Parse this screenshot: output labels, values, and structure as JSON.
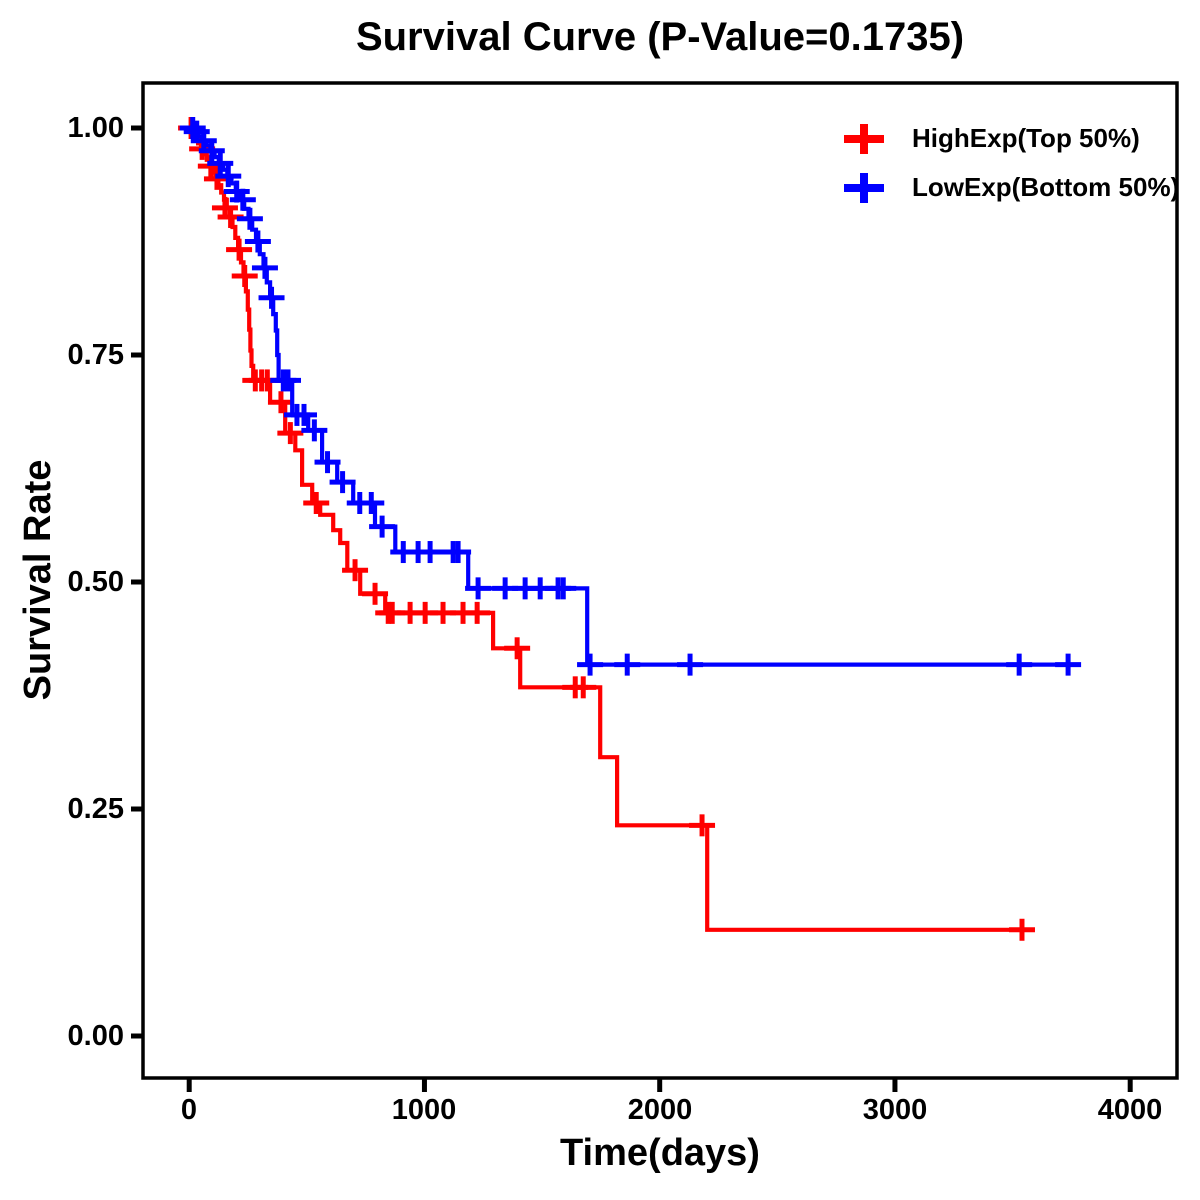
{
  "chart_data": {
    "type": "line",
    "subtype": "kaplan-meier-step-survival",
    "title": "Survival Curve (P-Value=0.1735)",
    "p_value": "0.1735",
    "xlabel": "Time(days)",
    "ylabel": "Survival Rate",
    "xlim": [
      0,
      4000
    ],
    "ylim": [
      0.0,
      1.0
    ],
    "grid": "off",
    "legend_position": "top-right-inside",
    "xticks": [
      0,
      1000,
      2000,
      3000,
      4000
    ],
    "yticks": [
      1.0,
      0.75,
      0.5,
      0.25,
      0.0
    ],
    "xtick_labels": [
      "0",
      "1000",
      "2000",
      "3000",
      "4000"
    ],
    "ytick_labels": [
      "1.00",
      "0.75",
      "0.50",
      "0.25",
      "0.00"
    ],
    "series": [
      {
        "name": "HighExp(Top 50%)",
        "color": "#FF0000",
        "end": 3557,
        "steps": [
          [
            0,
            1.0
          ],
          [
            12,
            0.995
          ],
          [
            25,
            0.989
          ],
          [
            38,
            0.983
          ],
          [
            50,
            0.977
          ],
          [
            62,
            0.971
          ],
          [
            75,
            0.965
          ],
          [
            88,
            0.958
          ],
          [
            100,
            0.951
          ],
          [
            112,
            0.944
          ],
          [
            124,
            0.937
          ],
          [
            136,
            0.929
          ],
          [
            148,
            0.921
          ],
          [
            160,
            0.912
          ],
          [
            172,
            0.902
          ],
          [
            184,
            0.891
          ],
          [
            196,
            0.879
          ],
          [
            208,
            0.866
          ],
          [
            220,
            0.852
          ],
          [
            231,
            0.837
          ],
          [
            241,
            0.82
          ],
          [
            249,
            0.8
          ],
          [
            255,
            0.778
          ],
          [
            260,
            0.755
          ],
          [
            265,
            0.738
          ],
          [
            272,
            0.722
          ],
          [
            344,
            0.698
          ],
          [
            408,
            0.664
          ],
          [
            451,
            0.645
          ],
          [
            480,
            0.607
          ],
          [
            523,
            0.587
          ],
          [
            557,
            0.574
          ],
          [
            612,
            0.557
          ],
          [
            642,
            0.543
          ],
          [
            672,
            0.513
          ],
          [
            727,
            0.487
          ],
          [
            833,
            0.466
          ],
          [
            1292,
            0.427
          ],
          [
            1407,
            0.384
          ],
          [
            1747,
            0.307
          ],
          [
            1819,
            0.232
          ],
          [
            2202,
            0.117
          ]
        ],
        "censors": [
          [
            8,
            1.0
          ],
          [
            55,
            0.977
          ],
          [
            92,
            0.958
          ],
          [
            118,
            0.944
          ],
          [
            152,
            0.912
          ],
          [
            176,
            0.902
          ],
          [
            212,
            0.866
          ],
          [
            236,
            0.837
          ],
          [
            281,
            0.722
          ],
          [
            308,
            0.722
          ],
          [
            332,
            0.722
          ],
          [
            390,
            0.698
          ],
          [
            430,
            0.664
          ],
          [
            540,
            0.587
          ],
          [
            705,
            0.513
          ],
          [
            790,
            0.487
          ],
          [
            846,
            0.466
          ],
          [
            863,
            0.466
          ],
          [
            939,
            0.466
          ],
          [
            1003,
            0.466
          ],
          [
            1079,
            0.466
          ],
          [
            1164,
            0.466
          ],
          [
            1224,
            0.466
          ],
          [
            1394,
            0.427
          ],
          [
            1641,
            0.384
          ],
          [
            1675,
            0.384
          ],
          [
            2180,
            0.232
          ],
          [
            3540,
            0.117
          ]
        ]
      },
      {
        "name": "LowExp(Bottom 50%)",
        "color": "#0000FF",
        "end": 3791,
        "steps": [
          [
            0,
            1.0
          ],
          [
            20,
            0.996
          ],
          [
            38,
            0.991
          ],
          [
            55,
            0.986
          ],
          [
            72,
            0.981
          ],
          [
            90,
            0.975
          ],
          [
            108,
            0.968
          ],
          [
            126,
            0.961
          ],
          [
            144,
            0.954
          ],
          [
            162,
            0.947
          ],
          [
            180,
            0.939
          ],
          [
            198,
            0.93
          ],
          [
            216,
            0.921
          ],
          [
            234,
            0.911
          ],
          [
            252,
            0.9
          ],
          [
            268,
            0.888
          ],
          [
            284,
            0.875
          ],
          [
            300,
            0.861
          ],
          [
            316,
            0.846
          ],
          [
            330,
            0.83
          ],
          [
            344,
            0.813
          ],
          [
            357,
            0.795
          ],
          [
            368,
            0.777
          ],
          [
            374,
            0.75
          ],
          [
            380,
            0.722
          ],
          [
            438,
            0.684
          ],
          [
            506,
            0.667
          ],
          [
            565,
            0.632
          ],
          [
            629,
            0.61
          ],
          [
            697,
            0.587
          ],
          [
            790,
            0.561
          ],
          [
            876,
            0.533
          ],
          [
            1186,
            0.493
          ],
          [
            1692,
            0.409
          ]
        ],
        "censors": [
          [
            15,
            1.0
          ],
          [
            32,
            0.996
          ],
          [
            62,
            0.986
          ],
          [
            96,
            0.975
          ],
          [
            132,
            0.961
          ],
          [
            166,
            0.947
          ],
          [
            202,
            0.93
          ],
          [
            228,
            0.921
          ],
          [
            258,
            0.9
          ],
          [
            292,
            0.875
          ],
          [
            322,
            0.846
          ],
          [
            350,
            0.813
          ],
          [
            400,
            0.722
          ],
          [
            420,
            0.722
          ],
          [
            458,
            0.684
          ],
          [
            488,
            0.684
          ],
          [
            532,
            0.667
          ],
          [
            588,
            0.632
          ],
          [
            652,
            0.61
          ],
          [
            725,
            0.587
          ],
          [
            774,
            0.587
          ],
          [
            820,
            0.561
          ],
          [
            910,
            0.533
          ],
          [
            973,
            0.533
          ],
          [
            1024,
            0.533
          ],
          [
            1122,
            0.533
          ],
          [
            1143,
            0.533
          ],
          [
            1228,
            0.493
          ],
          [
            1343,
            0.493
          ],
          [
            1428,
            0.493
          ],
          [
            1492,
            0.493
          ],
          [
            1568,
            0.493
          ],
          [
            1590,
            0.493
          ],
          [
            1704,
            0.409
          ],
          [
            1862,
            0.409
          ],
          [
            2129,
            0.409
          ],
          [
            3528,
            0.409
          ],
          [
            3736,
            0.409
          ]
        ]
      }
    ]
  }
}
